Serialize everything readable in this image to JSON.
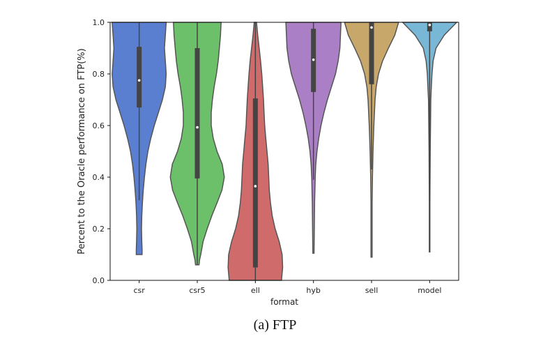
{
  "chart_data": {
    "type": "violin",
    "xlabel": "format",
    "ylabel": "Percent to the Oracle performance on FTP(%)",
    "ylim": [
      0.0,
      1.0
    ],
    "yticks": [
      0.0,
      0.2,
      0.4,
      0.6,
      0.8,
      1.0
    ],
    "ytick_labels": [
      "0.0",
      "0.2",
      "0.4",
      "0.6",
      "0.8",
      "1.0"
    ],
    "grid": false,
    "categories": [
      "csr",
      "csr5",
      "ell",
      "hyb",
      "sell",
      "model"
    ],
    "series": [
      {
        "category": "csr",
        "color": "#5a7fd0",
        "min": 0.1,
        "q1": 0.67,
        "median": 0.775,
        "q3": 0.905,
        "max": 1.0,
        "whisker_low": 0.31,
        "profile": [
          [
            0.1,
            0.1
          ],
          [
            0.12,
            0.1
          ],
          [
            0.15,
            0.09
          ],
          [
            0.2,
            0.08
          ],
          [
            0.25,
            0.09
          ],
          [
            0.3,
            0.11
          ],
          [
            0.35,
            0.14
          ],
          [
            0.4,
            0.18
          ],
          [
            0.45,
            0.23
          ],
          [
            0.5,
            0.3
          ],
          [
            0.55,
            0.4
          ],
          [
            0.6,
            0.52
          ],
          [
            0.65,
            0.66
          ],
          [
            0.7,
            0.8
          ],
          [
            0.75,
            0.9
          ],
          [
            0.8,
            0.93
          ],
          [
            0.85,
            0.9
          ],
          [
            0.9,
            0.87
          ],
          [
            0.95,
            0.9
          ],
          [
            1.0,
            0.93
          ]
        ]
      },
      {
        "category": "csr5",
        "color": "#6cc06a",
        "min": 0.06,
        "q1": 0.395,
        "median": 0.593,
        "q3": 0.9,
        "max": 1.0,
        "whisker_low": 0.06,
        "profile": [
          [
            0.06,
            0.06
          ],
          [
            0.08,
            0.08
          ],
          [
            0.1,
            0.12
          ],
          [
            0.15,
            0.2
          ],
          [
            0.2,
            0.34
          ],
          [
            0.25,
            0.5
          ],
          [
            0.3,
            0.68
          ],
          [
            0.35,
            0.85
          ],
          [
            0.4,
            0.93
          ],
          [
            0.45,
            0.86
          ],
          [
            0.5,
            0.68
          ],
          [
            0.55,
            0.55
          ],
          [
            0.6,
            0.48
          ],
          [
            0.65,
            0.48
          ],
          [
            0.7,
            0.52
          ],
          [
            0.75,
            0.58
          ],
          [
            0.8,
            0.66
          ],
          [
            0.85,
            0.72
          ],
          [
            0.9,
            0.76
          ],
          [
            0.95,
            0.8
          ],
          [
            1.0,
            0.82
          ]
        ]
      },
      {
        "category": "ell",
        "color": "#cf6b6b",
        "min": 0.0,
        "q1": 0.05,
        "median": 0.365,
        "q3": 0.705,
        "max": 1.0,
        "whisker_low": 0.0,
        "profile": [
          [
            0.0,
            0.9
          ],
          [
            0.05,
            0.94
          ],
          [
            0.1,
            0.92
          ],
          [
            0.15,
            0.82
          ],
          [
            0.2,
            0.68
          ],
          [
            0.25,
            0.58
          ],
          [
            0.3,
            0.52
          ],
          [
            0.35,
            0.48
          ],
          [
            0.4,
            0.46
          ],
          [
            0.45,
            0.44
          ],
          [
            0.5,
            0.4
          ],
          [
            0.55,
            0.36
          ],
          [
            0.6,
            0.32
          ],
          [
            0.65,
            0.3
          ],
          [
            0.7,
            0.28
          ],
          [
            0.75,
            0.25
          ],
          [
            0.8,
            0.22
          ],
          [
            0.85,
            0.18
          ],
          [
            0.9,
            0.13
          ],
          [
            0.95,
            0.08
          ],
          [
            1.0,
            0.04
          ]
        ]
      },
      {
        "category": "hyb",
        "color": "#ab7fc6",
        "min": 0.105,
        "q1": 0.73,
        "median": 0.855,
        "q3": 0.975,
        "max": 1.0,
        "whisker_low": 0.39,
        "profile": [
          [
            0.105,
            0.02
          ],
          [
            0.2,
            0.03
          ],
          [
            0.3,
            0.04
          ],
          [
            0.4,
            0.06
          ],
          [
            0.45,
            0.08
          ],
          [
            0.5,
            0.12
          ],
          [
            0.55,
            0.18
          ],
          [
            0.6,
            0.26
          ],
          [
            0.65,
            0.36
          ],
          [
            0.7,
            0.48
          ],
          [
            0.75,
            0.62
          ],
          [
            0.8,
            0.76
          ],
          [
            0.85,
            0.85
          ],
          [
            0.9,
            0.91
          ],
          [
            0.95,
            0.93
          ],
          [
            1.0,
            0.95
          ]
        ]
      },
      {
        "category": "sell",
        "color": "#c8a76a",
        "min": 0.09,
        "q1": 0.76,
        "median": 0.98,
        "q3": 1.0,
        "max": 1.0,
        "whisker_low": 0.43,
        "profile": [
          [
            0.09,
            0.02
          ],
          [
            0.2,
            0.02
          ],
          [
            0.3,
            0.02
          ],
          [
            0.4,
            0.03
          ],
          [
            0.5,
            0.05
          ],
          [
            0.6,
            0.08
          ],
          [
            0.7,
            0.12
          ],
          [
            0.75,
            0.16
          ],
          [
            0.8,
            0.24
          ],
          [
            0.85,
            0.38
          ],
          [
            0.9,
            0.58
          ],
          [
            0.95,
            0.8
          ],
          [
            1.0,
            0.93
          ]
        ]
      },
      {
        "category": "model",
        "color": "#79b7d6",
        "min": 0.11,
        "q1": 0.965,
        "median": 0.99,
        "q3": 1.0,
        "max": 1.0,
        "whisker_low": 0.11,
        "profile": [
          [
            0.11,
            0.01
          ],
          [
            0.3,
            0.01
          ],
          [
            0.5,
            0.02
          ],
          [
            0.6,
            0.03
          ],
          [
            0.7,
            0.04
          ],
          [
            0.75,
            0.06
          ],
          [
            0.8,
            0.08
          ],
          [
            0.85,
            0.12
          ],
          [
            0.9,
            0.22
          ],
          [
            0.95,
            0.5
          ],
          [
            1.0,
            0.93
          ]
        ]
      }
    ]
  },
  "caption": "(a)  FTP"
}
